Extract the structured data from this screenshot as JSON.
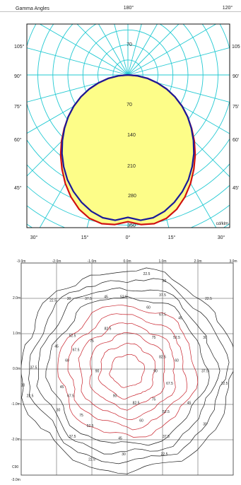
{
  "chart_data": [
    {
      "type": "polar",
      "title": "Gamma Angles",
      "unit": "cd/klm",
      "top_angle_labels": [
        "180°",
        "120°"
      ],
      "left_angle_labels": [
        "105°",
        "90°",
        "75°",
        "60°",
        "45°"
      ],
      "right_angle_labels": [
        "105",
        "90'",
        "75'",
        "60'",
        "45'"
      ],
      "bottom_angle_labels": [
        "30°",
        "15°",
        "0°",
        "15°",
        "30°"
      ],
      "radial_ticks": [
        70,
        70,
        140,
        210,
        280,
        350
      ],
      "rmax": 350,
      "series": [
        {
          "color": "#d01010",
          "angles": [
            0,
            5,
            10,
            15,
            20,
            25,
            30,
            35,
            40,
            45,
            50,
            55,
            60,
            65,
            70,
            75,
            80,
            85,
            90
          ],
          "values": [
            342,
            350,
            352,
            346,
            333,
            314,
            292,
            268,
            244,
            219,
            194,
            170,
            146,
            121,
            96,
            71,
            46,
            21,
            0
          ]
        },
        {
          "color": "#1a1a9a",
          "angles": [
            0,
            5,
            10,
            15,
            20,
            25,
            30,
            35,
            40,
            45,
            50,
            55,
            60,
            65,
            70,
            75,
            80,
            85,
            90
          ],
          "values": [
            332,
            340,
            338,
            329,
            316,
            300,
            282,
            261,
            239,
            216,
            193,
            170,
            146,
            121,
            96,
            71,
            46,
            21,
            0
          ]
        }
      ]
    },
    {
      "type": "contour",
      "x_ticks": [
        "-3.0m",
        "-2.0m",
        "-1.0m",
        "0.0m",
        "1.0m",
        "2.0m",
        "3.0m"
      ],
      "y_ticks": [
        "2.0m",
        "1.0m",
        "0.0m",
        "-1.0m",
        "-2.0m",
        "-3.0m"
      ],
      "corner_label": "C90",
      "xlim": [
        -3,
        3
      ],
      "ylim": [
        -3,
        3
      ],
      "levels": [
        22.5,
        30,
        37.5,
        45,
        52.5,
        60,
        67.5,
        75,
        82.5,
        90
      ],
      "contour_labels": [
        {
          "text": "22.5",
          "x": 0.55,
          "y": 2.7
        },
        {
          "text": "30",
          "x": 1.05,
          "y": 2.5
        },
        {
          "text": "22.5",
          "x": -2.1,
          "y": 1.95
        },
        {
          "text": "30",
          "x": -1.65,
          "y": 2.0
        },
        {
          "text": "37.5",
          "x": -1.1,
          "y": 2.0
        },
        {
          "text": "45",
          "x": -0.6,
          "y": 2.05
        },
        {
          "text": "52.5",
          "x": -0.1,
          "y": 2.05
        },
        {
          "text": "37.5",
          "x": 1.0,
          "y": 2.1
        },
        {
          "text": "60",
          "x": 0.6,
          "y": 1.75
        },
        {
          "text": "67.5",
          "x": 1.0,
          "y": 1.55
        },
        {
          "text": "45",
          "x": 1.5,
          "y": 1.45
        },
        {
          "text": "22.5",
          "x": 2.3,
          "y": 2.0
        },
        {
          "text": "52.5",
          "x": -1.55,
          "y": 0.95
        },
        {
          "text": "82.5",
          "x": -0.55,
          "y": 1.15
        },
        {
          "text": "45",
          "x": -2.0,
          "y": 0.65
        },
        {
          "text": "67.5",
          "x": -1.45,
          "y": 0.55
        },
        {
          "text": "75",
          "x": -1.0,
          "y": 0.8
        },
        {
          "text": "75",
          "x": 0.75,
          "y": 0.9
        },
        {
          "text": "52.5",
          "x": 1.4,
          "y": 0.9
        },
        {
          "text": "82.5",
          "x": 1.0,
          "y": 0.35
        },
        {
          "text": "60",
          "x": 1.4,
          "y": 0.25
        },
        {
          "text": "30",
          "x": 2.2,
          "y": 0.9
        },
        {
          "text": "37.5",
          "x": -2.65,
          "y": 0.05
        },
        {
          "text": "60",
          "x": -1.7,
          "y": 0.25
        },
        {
          "text": "90",
          "x": -0.85,
          "y": -0.05
        },
        {
          "text": "90",
          "x": 0.8,
          "y": -0.05
        },
        {
          "text": "37.5",
          "x": 2.2,
          "y": -0.05
        },
        {
          "text": "30",
          "x": -2.95,
          "y": -0.45
        },
        {
          "text": "45",
          "x": -1.85,
          "y": -0.5
        },
        {
          "text": "67.5",
          "x": 1.2,
          "y": -0.4
        },
        {
          "text": "22.5",
          "x": 2.75,
          "y": -0.4
        },
        {
          "text": "22.5",
          "x": -2.75,
          "y": -0.75
        },
        {
          "text": "67.5",
          "x": -1.6,
          "y": -0.75
        },
        {
          "text": "90",
          "x": -0.35,
          "y": -0.75
        },
        {
          "text": "82.5",
          "x": 0.25,
          "y": -0.95
        },
        {
          "text": "75",
          "x": 0.75,
          "y": -0.85
        },
        {
          "text": "45",
          "x": 1.75,
          "y": -0.95
        },
        {
          "text": "30",
          "x": -1.95,
          "y": -1.15
        },
        {
          "text": "75",
          "x": -1.3,
          "y": -1.3
        },
        {
          "text": "52.5",
          "x": 1.1,
          "y": -1.2
        },
        {
          "text": "52.5",
          "x": -1.05,
          "y": -1.6
        },
        {
          "text": "60",
          "x": 0.4,
          "y": -1.45
        },
        {
          "text": "37.5",
          "x": -1.55,
          "y": -1.9
        },
        {
          "text": "45",
          "x": -0.2,
          "y": -1.95
        },
        {
          "text": "37.5",
          "x": 1.1,
          "y": -1.9
        },
        {
          "text": "30",
          "x": 2.2,
          "y": -1.55
        },
        {
          "text": "22.5",
          "x": -1.0,
          "y": -2.55
        },
        {
          "text": "30",
          "x": -0.1,
          "y": -2.4
        },
        {
          "text": "22.5",
          "x": 1.05,
          "y": -2.4
        }
      ]
    }
  ]
}
